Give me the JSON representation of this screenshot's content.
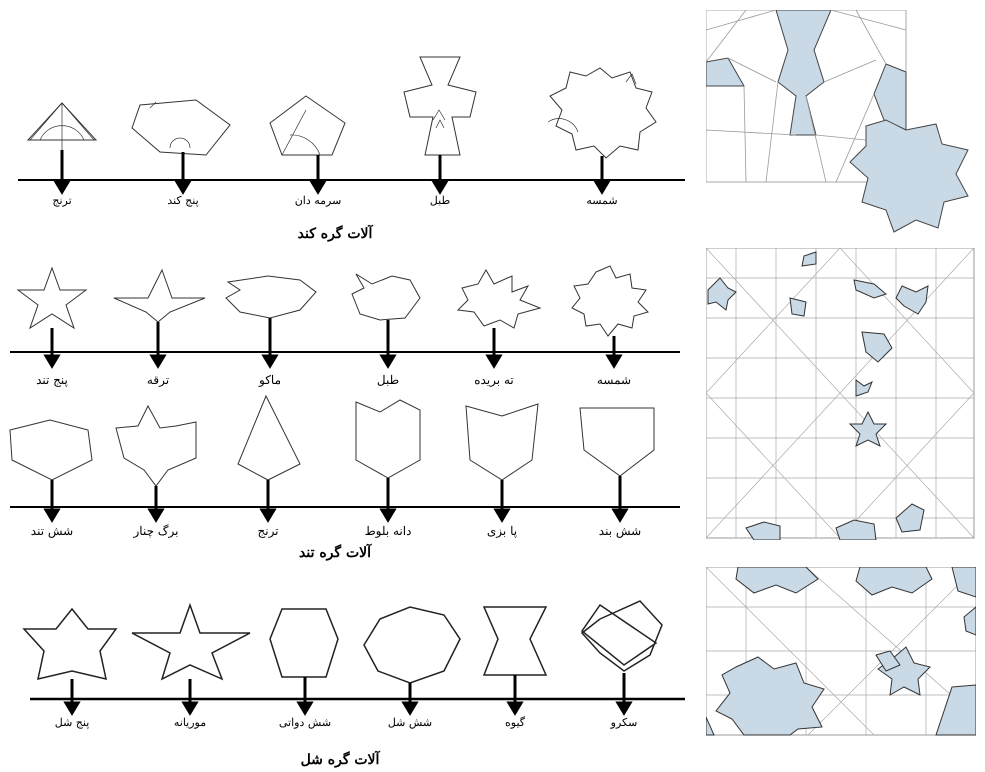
{
  "group1": {
    "title": "آلات گره کند",
    "labels": [
      "ترنج",
      "پنج کند",
      "سرمه دان",
      "طبل",
      "شمسه"
    ]
  },
  "group2": {
    "title": "آلات گره تند",
    "row1_labels": [
      "پنج تند",
      "ترقه",
      "ماکو",
      "طبل",
      "ته بریده",
      "شمسه"
    ],
    "row2_labels": [
      "شش تند",
      "برگ چنار",
      "ترنج",
      "دانه بلوط",
      "پا بزی",
      "شش بند"
    ]
  },
  "group3": {
    "title": "آلات گره شل",
    "labels": [
      "پنج شل",
      "موریانه",
      "شش دواتی",
      "شش شل",
      "گیوه",
      "سکرو"
    ]
  },
  "colors": {
    "line": "#000000",
    "tile_fill": "#c9d9e6",
    "pattern_line": "#9a9a9a"
  },
  "icons": [
    "arrow-down-icon",
    "geometric-tile-shape",
    "girih-pattern-panel"
  ]
}
